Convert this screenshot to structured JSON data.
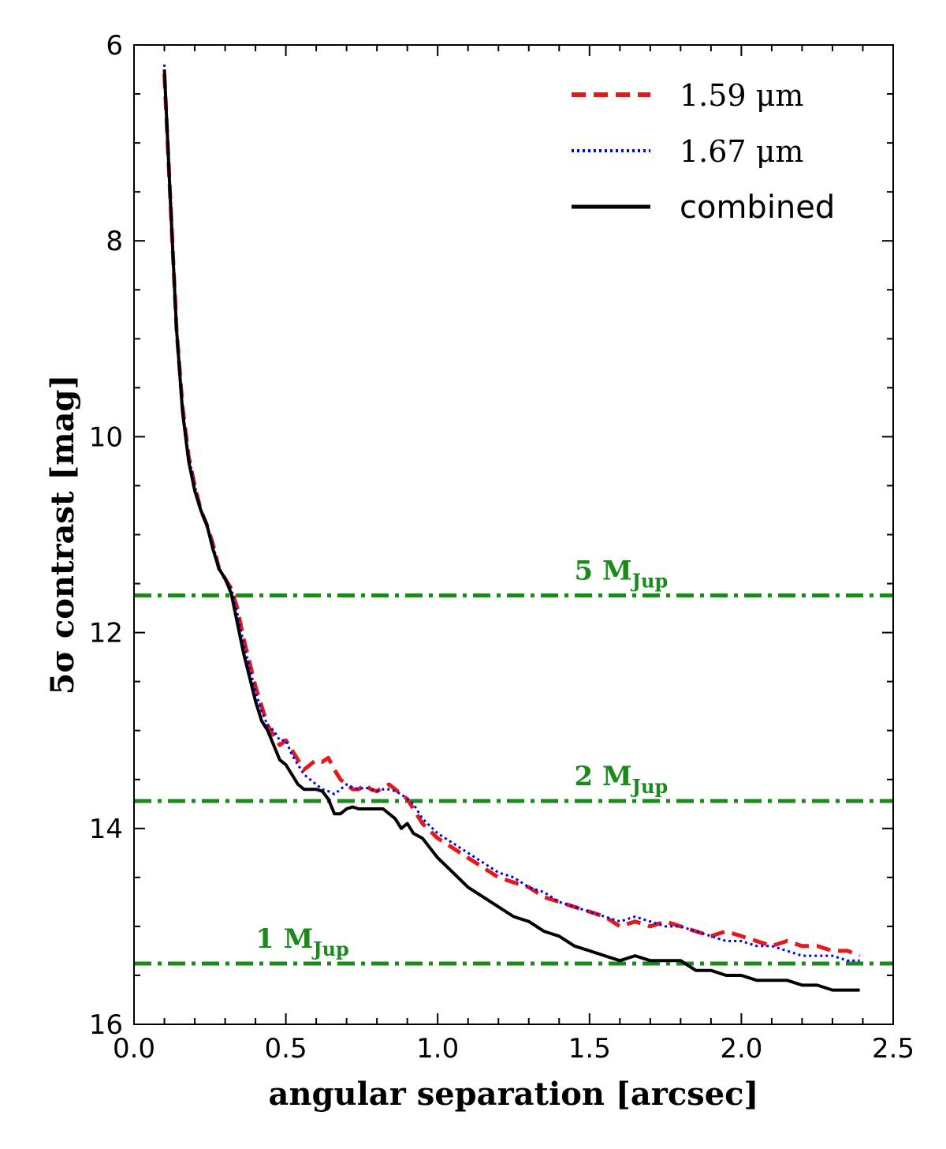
{
  "chart_data": {
    "type": "line",
    "title": "",
    "xlabel": "angular separation [arcsec]",
    "ylabel": "5σ contrast [mag]",
    "xlim": [
      0.0,
      2.5
    ],
    "ylim": [
      16,
      6
    ],
    "y_inverted": true,
    "x_ticks": [
      0.0,
      0.5,
      1.0,
      1.5,
      2.0,
      2.5
    ],
    "x_tick_labels": [
      "0.0",
      "0.5",
      "1.0",
      "1.5",
      "2.0",
      "2.5"
    ],
    "y_ticks": [
      6,
      8,
      10,
      12,
      14,
      16
    ],
    "y_tick_labels": [
      "6",
      "8",
      "10",
      "12",
      "14",
      "16"
    ],
    "legend_position": "top-right",
    "series": [
      {
        "name": "1.59 μm",
        "color": "#e31a1c",
        "style": "dashed",
        "x": [
          0.1,
          0.12,
          0.14,
          0.16,
          0.18,
          0.2,
          0.22,
          0.24,
          0.26,
          0.28,
          0.3,
          0.32,
          0.34,
          0.36,
          0.38,
          0.4,
          0.42,
          0.44,
          0.46,
          0.48,
          0.5,
          0.52,
          0.54,
          0.56,
          0.58,
          0.6,
          0.62,
          0.64,
          0.66,
          0.68,
          0.7,
          0.72,
          0.74,
          0.76,
          0.78,
          0.8,
          0.82,
          0.84,
          0.86,
          0.88,
          0.9,
          0.92,
          0.95,
          1.0,
          1.05,
          1.1,
          1.15,
          1.2,
          1.25,
          1.3,
          1.35,
          1.4,
          1.45,
          1.5,
          1.55,
          1.6,
          1.65,
          1.7,
          1.75,
          1.8,
          1.85,
          1.9,
          1.95,
          2.0,
          2.05,
          2.1,
          2.15,
          2.2,
          2.25,
          2.3,
          2.35,
          2.39
        ],
        "y": [
          6.3,
          7.6,
          8.9,
          9.7,
          10.2,
          10.5,
          10.75,
          10.9,
          11.1,
          11.35,
          11.45,
          11.55,
          11.75,
          12.05,
          12.3,
          12.55,
          12.75,
          12.95,
          13.05,
          13.15,
          13.1,
          13.2,
          13.3,
          13.4,
          13.35,
          13.3,
          13.32,
          13.28,
          13.4,
          13.5,
          13.55,
          13.6,
          13.6,
          13.55,
          13.6,
          13.62,
          13.58,
          13.55,
          13.6,
          13.65,
          13.7,
          13.8,
          13.95,
          14.1,
          14.2,
          14.3,
          14.4,
          14.5,
          14.55,
          14.6,
          14.7,
          14.75,
          14.8,
          14.85,
          14.9,
          15.0,
          14.95,
          15.0,
          14.95,
          15.0,
          15.05,
          15.1,
          15.05,
          15.1,
          15.15,
          15.2,
          15.15,
          15.2,
          15.2,
          15.25,
          15.25,
          15.3
        ]
      },
      {
        "name": "1.67 μm",
        "color": "#0000ee",
        "style": "dotted",
        "x": [
          0.1,
          0.12,
          0.14,
          0.16,
          0.18,
          0.2,
          0.22,
          0.24,
          0.26,
          0.28,
          0.3,
          0.32,
          0.34,
          0.36,
          0.38,
          0.4,
          0.42,
          0.44,
          0.46,
          0.48,
          0.5,
          0.52,
          0.54,
          0.56,
          0.58,
          0.6,
          0.62,
          0.64,
          0.66,
          0.68,
          0.7,
          0.72,
          0.74,
          0.76,
          0.78,
          0.8,
          0.82,
          0.84,
          0.86,
          0.88,
          0.9,
          0.92,
          0.95,
          1.0,
          1.05,
          1.1,
          1.15,
          1.2,
          1.25,
          1.3,
          1.35,
          1.4,
          1.45,
          1.5,
          1.55,
          1.6,
          1.65,
          1.7,
          1.75,
          1.8,
          1.85,
          1.9,
          1.95,
          2.0,
          2.05,
          2.1,
          2.15,
          2.2,
          2.25,
          2.3,
          2.35,
          2.39
        ],
        "y": [
          6.2,
          7.5,
          8.9,
          9.7,
          10.2,
          10.5,
          10.75,
          10.9,
          11.1,
          11.35,
          11.45,
          11.55,
          11.8,
          12.1,
          12.35,
          12.6,
          12.8,
          12.95,
          13.0,
          13.1,
          13.1,
          13.25,
          13.35,
          13.45,
          13.5,
          13.55,
          13.6,
          13.62,
          13.65,
          13.6,
          13.55,
          13.58,
          13.6,
          13.58,
          13.6,
          13.62,
          13.6,
          13.6,
          13.62,
          13.65,
          13.7,
          13.75,
          13.9,
          14.05,
          14.15,
          14.25,
          14.35,
          14.45,
          14.5,
          14.6,
          14.65,
          14.75,
          14.8,
          14.85,
          14.9,
          14.95,
          14.9,
          14.95,
          15.0,
          15.0,
          15.05,
          15.1,
          15.15,
          15.15,
          15.2,
          15.2,
          15.25,
          15.3,
          15.3,
          15.3,
          15.35,
          15.35
        ]
      },
      {
        "name": "combined",
        "color": "#000000",
        "style": "solid",
        "x": [
          0.1,
          0.12,
          0.14,
          0.16,
          0.18,
          0.2,
          0.22,
          0.24,
          0.26,
          0.28,
          0.3,
          0.32,
          0.34,
          0.36,
          0.38,
          0.4,
          0.42,
          0.44,
          0.46,
          0.48,
          0.5,
          0.52,
          0.54,
          0.56,
          0.58,
          0.6,
          0.62,
          0.64,
          0.66,
          0.68,
          0.7,
          0.72,
          0.74,
          0.76,
          0.78,
          0.8,
          0.82,
          0.84,
          0.86,
          0.88,
          0.9,
          0.92,
          0.95,
          1.0,
          1.05,
          1.1,
          1.15,
          1.2,
          1.25,
          1.3,
          1.35,
          1.4,
          1.45,
          1.5,
          1.55,
          1.6,
          1.65,
          1.7,
          1.75,
          1.8,
          1.85,
          1.9,
          1.95,
          2.0,
          2.05,
          2.1,
          2.15,
          2.2,
          2.25,
          2.3,
          2.35,
          2.39
        ],
        "y": [
          6.25,
          7.6,
          8.9,
          9.75,
          10.25,
          10.55,
          10.75,
          10.9,
          11.15,
          11.35,
          11.45,
          11.6,
          11.9,
          12.2,
          12.45,
          12.7,
          12.9,
          13.0,
          13.15,
          13.3,
          13.35,
          13.45,
          13.55,
          13.6,
          13.6,
          13.6,
          13.62,
          13.7,
          13.85,
          13.85,
          13.8,
          13.78,
          13.8,
          13.8,
          13.8,
          13.8,
          13.8,
          13.85,
          13.9,
          14.0,
          13.95,
          14.05,
          14.1,
          14.3,
          14.45,
          14.6,
          14.7,
          14.8,
          14.9,
          14.95,
          15.05,
          15.1,
          15.2,
          15.25,
          15.3,
          15.35,
          15.3,
          15.35,
          15.35,
          15.35,
          15.45,
          15.45,
          15.5,
          15.5,
          15.55,
          15.55,
          15.55,
          15.6,
          15.6,
          15.65,
          15.65,
          15.65
        ]
      }
    ],
    "hlines": [
      {
        "y": 11.62,
        "label_num": "5",
        "label_sym": "M",
        "label_sub": "Jup",
        "color": "#1a8a1a",
        "label_x": 1.45
      },
      {
        "y": 13.72,
        "label_num": "2",
        "label_sym": "M",
        "label_sub": "Jup",
        "color": "#1a8a1a",
        "label_x": 1.45
      },
      {
        "y": 15.38,
        "label_num": "1",
        "label_sym": "M",
        "label_sub": "Jup",
        "color": "#1a8a1a",
        "label_x": 0.4
      }
    ]
  }
}
